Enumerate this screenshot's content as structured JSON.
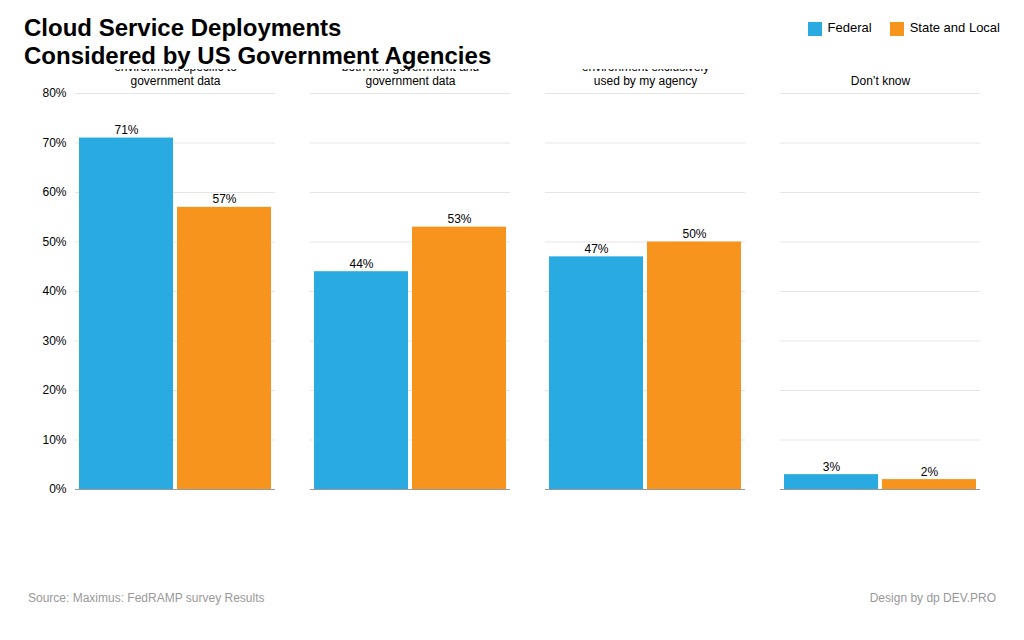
{
  "chart_data": {
    "type": "bar",
    "title": "Cloud Service Deployments\nConsidered by US Government Agencies",
    "categories": [
      "Government-only\ncommunity cloud:\nCloud\nenvironment specific to\ngovernment data",
      "Public cloud:\nCloud\nenvironment available for\nboth non-government and\ngovernment data",
      "Private cloud:\nCloud\nenvironment exclusively\nused by my agency",
      "Don’t know"
    ],
    "series": [
      {
        "name": "Federal",
        "color": "#29ABE2",
        "values": [
          71,
          44,
          47,
          3
        ],
        "value_labels": [
          "71%",
          "44%",
          "47%",
          "3%"
        ]
      },
      {
        "name": "State and Local",
        "color": "#F7941D",
        "values": [
          57,
          53,
          50,
          2
        ],
        "value_labels": [
          "57%",
          "53%",
          "50%",
          "2%"
        ]
      }
    ],
    "ylim": [
      0,
      80
    ],
    "yticks": [
      {
        "value": 0,
        "label": "0%"
      },
      {
        "value": 10,
        "label": "10%"
      },
      {
        "value": 20,
        "label": "20%"
      },
      {
        "value": 30,
        "label": "30%"
      },
      {
        "value": 40,
        "label": "40%"
      },
      {
        "value": 50,
        "label": "50%"
      },
      {
        "value": 60,
        "label": "60%"
      },
      {
        "value": 70,
        "label": "70%"
      },
      {
        "value": 80,
        "label": "80%"
      }
    ],
    "grid": true,
    "legend": "upper right",
    "data_labels": true,
    "annotations": [
      "Source: Maximus: FedRAMP survey Results",
      "Design by",
      "dp",
      "DEV.PRO"
    ]
  }
}
